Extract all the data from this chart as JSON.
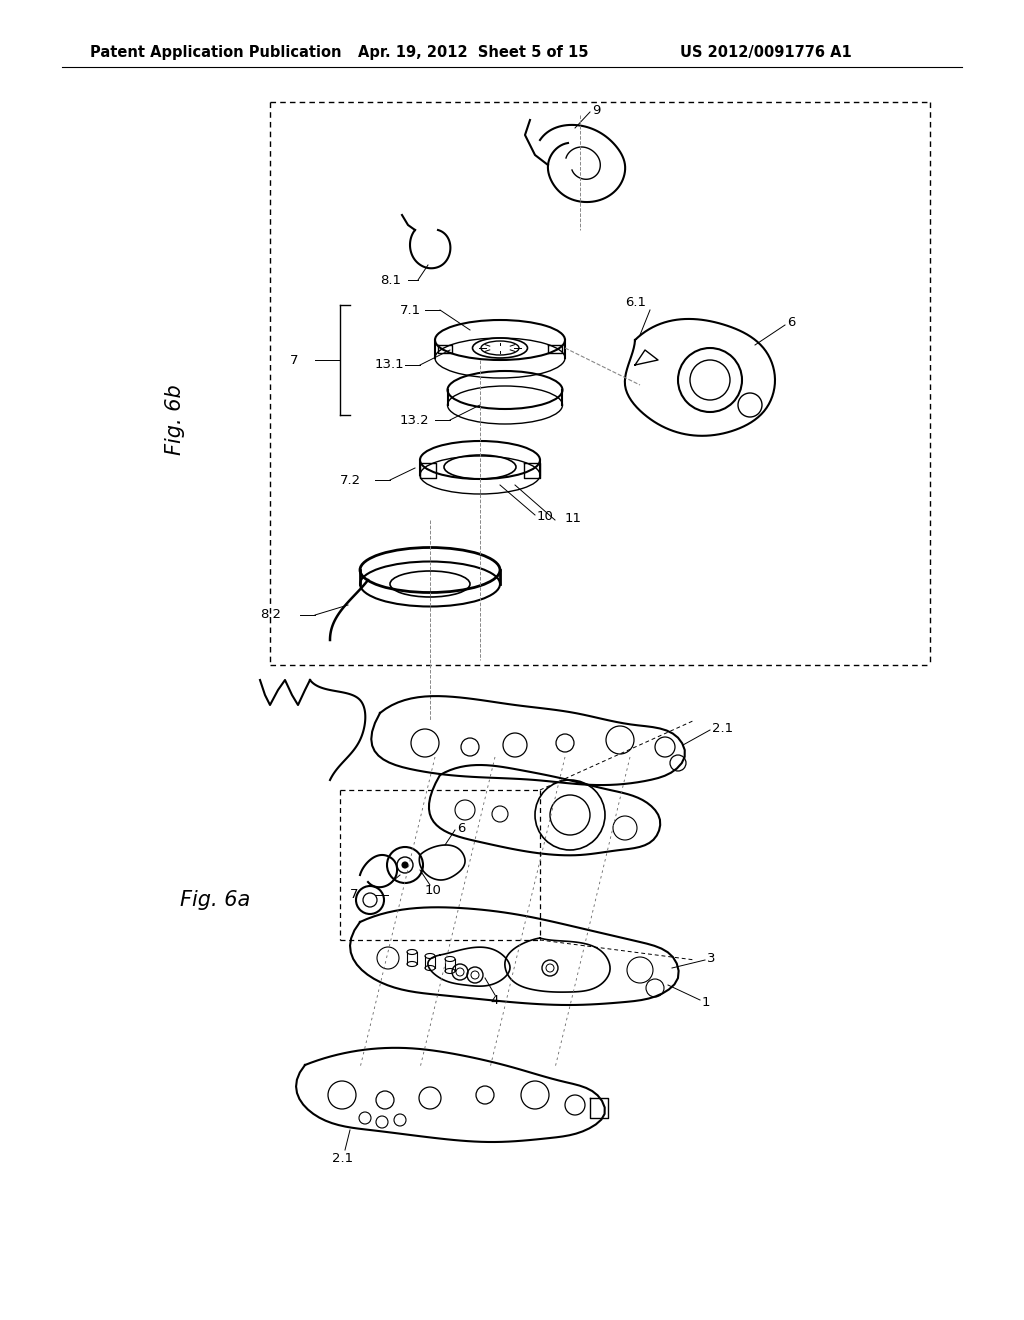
{
  "background_color": "#ffffff",
  "header_left": "Patent Application Publication",
  "header_center": "Apr. 19, 2012  Sheet 5 of 15",
  "header_right": "US 2012/0091776 A1",
  "fig6b_label": "Fig. 6b",
  "fig6a_label": "Fig. 6a",
  "header_fontsize": 10.5,
  "label_fontsize": 15,
  "ref_fontsize": 9.5
}
